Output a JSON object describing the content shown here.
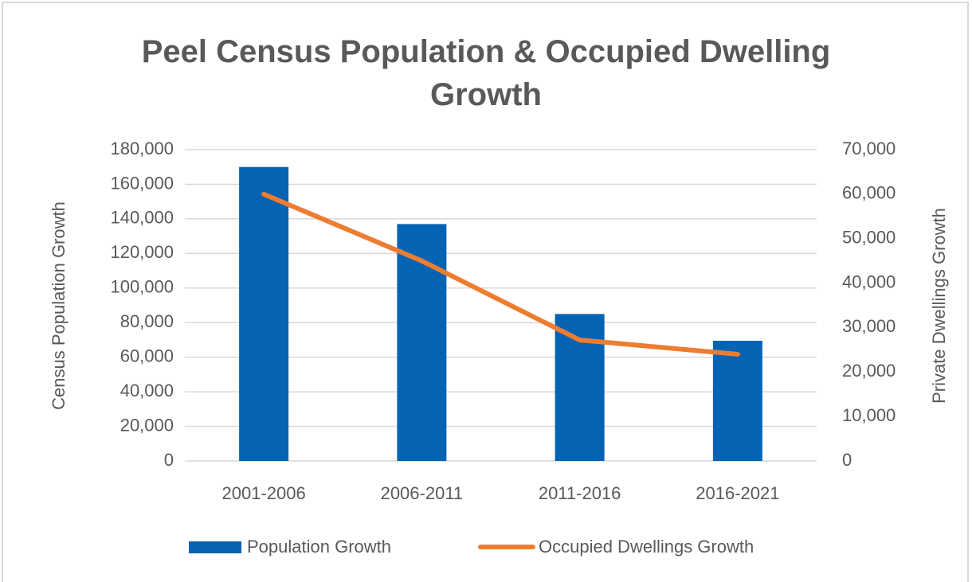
{
  "chart_data": {
    "type": "bar_line",
    "title": "Peel Census Population & Occupied Dwelling Growth",
    "y_label": "Census Population Growth",
    "y2_label": "Private Dwellings Growth",
    "categories": [
      "2001-2006",
      "2006-2011",
      "2011-2016",
      "2016-2021"
    ],
    "series": [
      {
        "name": "Population Growth",
        "type": "bar",
        "color": "#0563b4",
        "values": [
          170000,
          137000,
          85000,
          69500
        ]
      },
      {
        "name": "Occupied Dwellings Growth",
        "type": "line",
        "axis": "y2",
        "color": "#ed7d31",
        "values": [
          60000,
          45000,
          27200,
          24000
        ]
      }
    ],
    "ylim": [
      0,
      180000
    ],
    "yticks": [
      {
        "value": 0,
        "label": "0"
      },
      {
        "value": 20000,
        "label": "20,000"
      },
      {
        "value": 40000,
        "label": "40,000"
      },
      {
        "value": 60000,
        "label": "60,000"
      },
      {
        "value": 80000,
        "label": "80,000"
      },
      {
        "value": 100000,
        "label": "100,000"
      },
      {
        "value": 120000,
        "label": "120,000"
      },
      {
        "value": 140000,
        "label": "140,000"
      },
      {
        "value": 160000,
        "label": "160,000"
      },
      {
        "value": 180000,
        "label": "180,000"
      }
    ],
    "y2lim": [
      0,
      70000
    ],
    "y2ticks": [
      {
        "value": 0,
        "label": "0"
      },
      {
        "value": 10000,
        "label": "10,000"
      },
      {
        "value": 20000,
        "label": "20,000"
      },
      {
        "value": 30000,
        "label": "30,000"
      },
      {
        "value": 40000,
        "label": "40,000"
      },
      {
        "value": 50000,
        "label": "50,000"
      },
      {
        "value": 60000,
        "label": "60,000"
      },
      {
        "value": 70000,
        "label": "70,000"
      }
    ],
    "grid": true,
    "legend": "bottom"
  }
}
